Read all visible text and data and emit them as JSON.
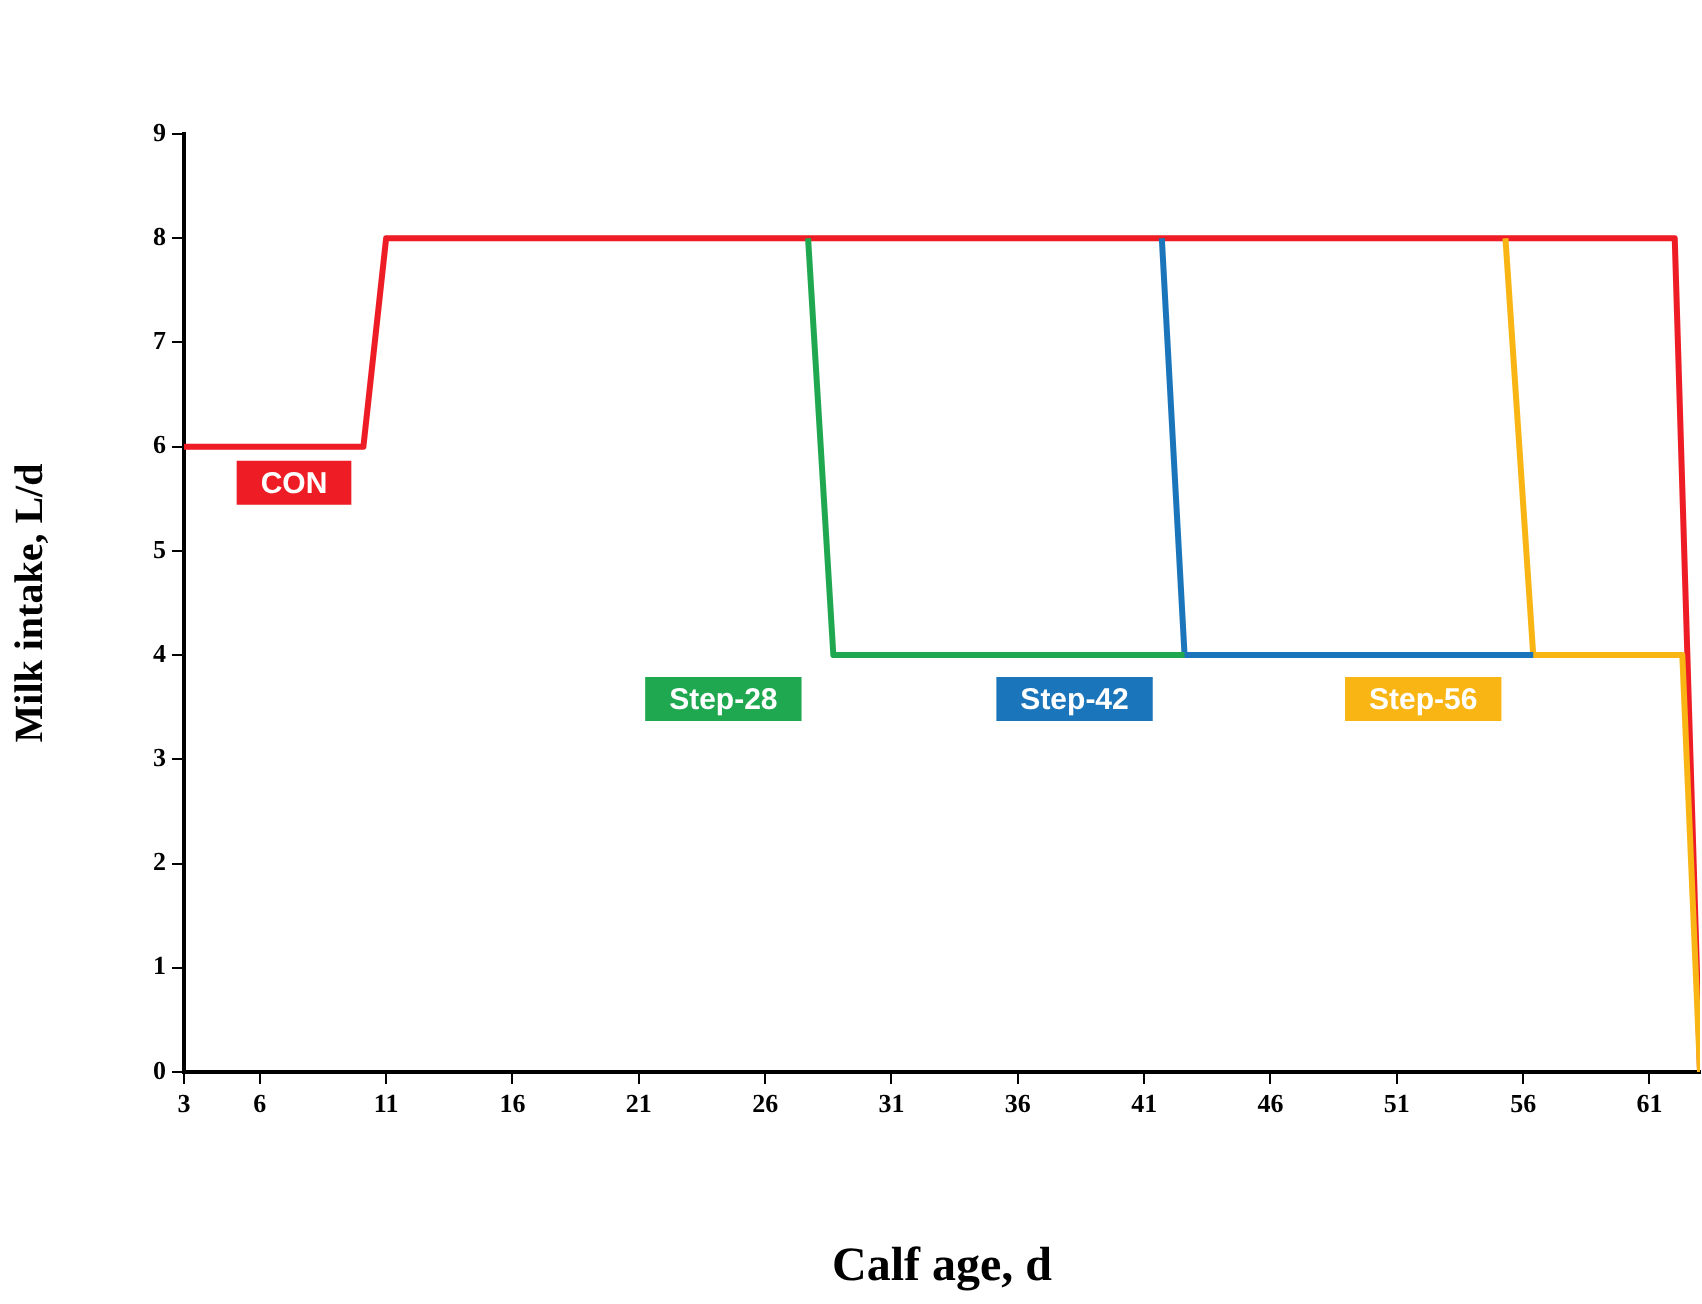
{
  "chart_data": {
    "type": "line",
    "xlabel": "Calf age, d",
    "ylabel": "Milk intake, L/d",
    "xlim": [
      3,
      63
    ],
    "xticks": [
      3,
      6,
      11,
      16,
      21,
      26,
      31,
      36,
      41,
      46,
      51,
      56,
      61
    ],
    "ylim": [
      0,
      9
    ],
    "yticks": [
      0,
      1,
      2,
      3,
      4,
      5,
      6,
      7,
      8,
      9
    ],
    "grid": false,
    "legend": false,
    "marker": "none",
    "line_style": "solid",
    "series": [
      {
        "name": "Step-28",
        "color": "#1fa84f",
        "x": [
          27.7,
          28.7,
          42.6
        ],
        "values": [
          8,
          4,
          4
        ]
      },
      {
        "name": "Step-42",
        "color": "#1b75bb",
        "x": [
          41.7,
          42.6,
          56.4
        ],
        "values": [
          8,
          4,
          4
        ]
      },
      {
        "name": "Step-56",
        "color": "#f8b514",
        "x": [
          55.3,
          56.4,
          62.3,
          63
        ],
        "values": [
          8,
          4,
          4,
          0
        ]
      },
      {
        "name": "CON",
        "color": "#ee1c25",
        "x": [
          3,
          10.1,
          11,
          62,
          63
        ],
        "values": [
          6,
          6,
          8,
          8,
          0
        ]
      }
    ]
  }
}
